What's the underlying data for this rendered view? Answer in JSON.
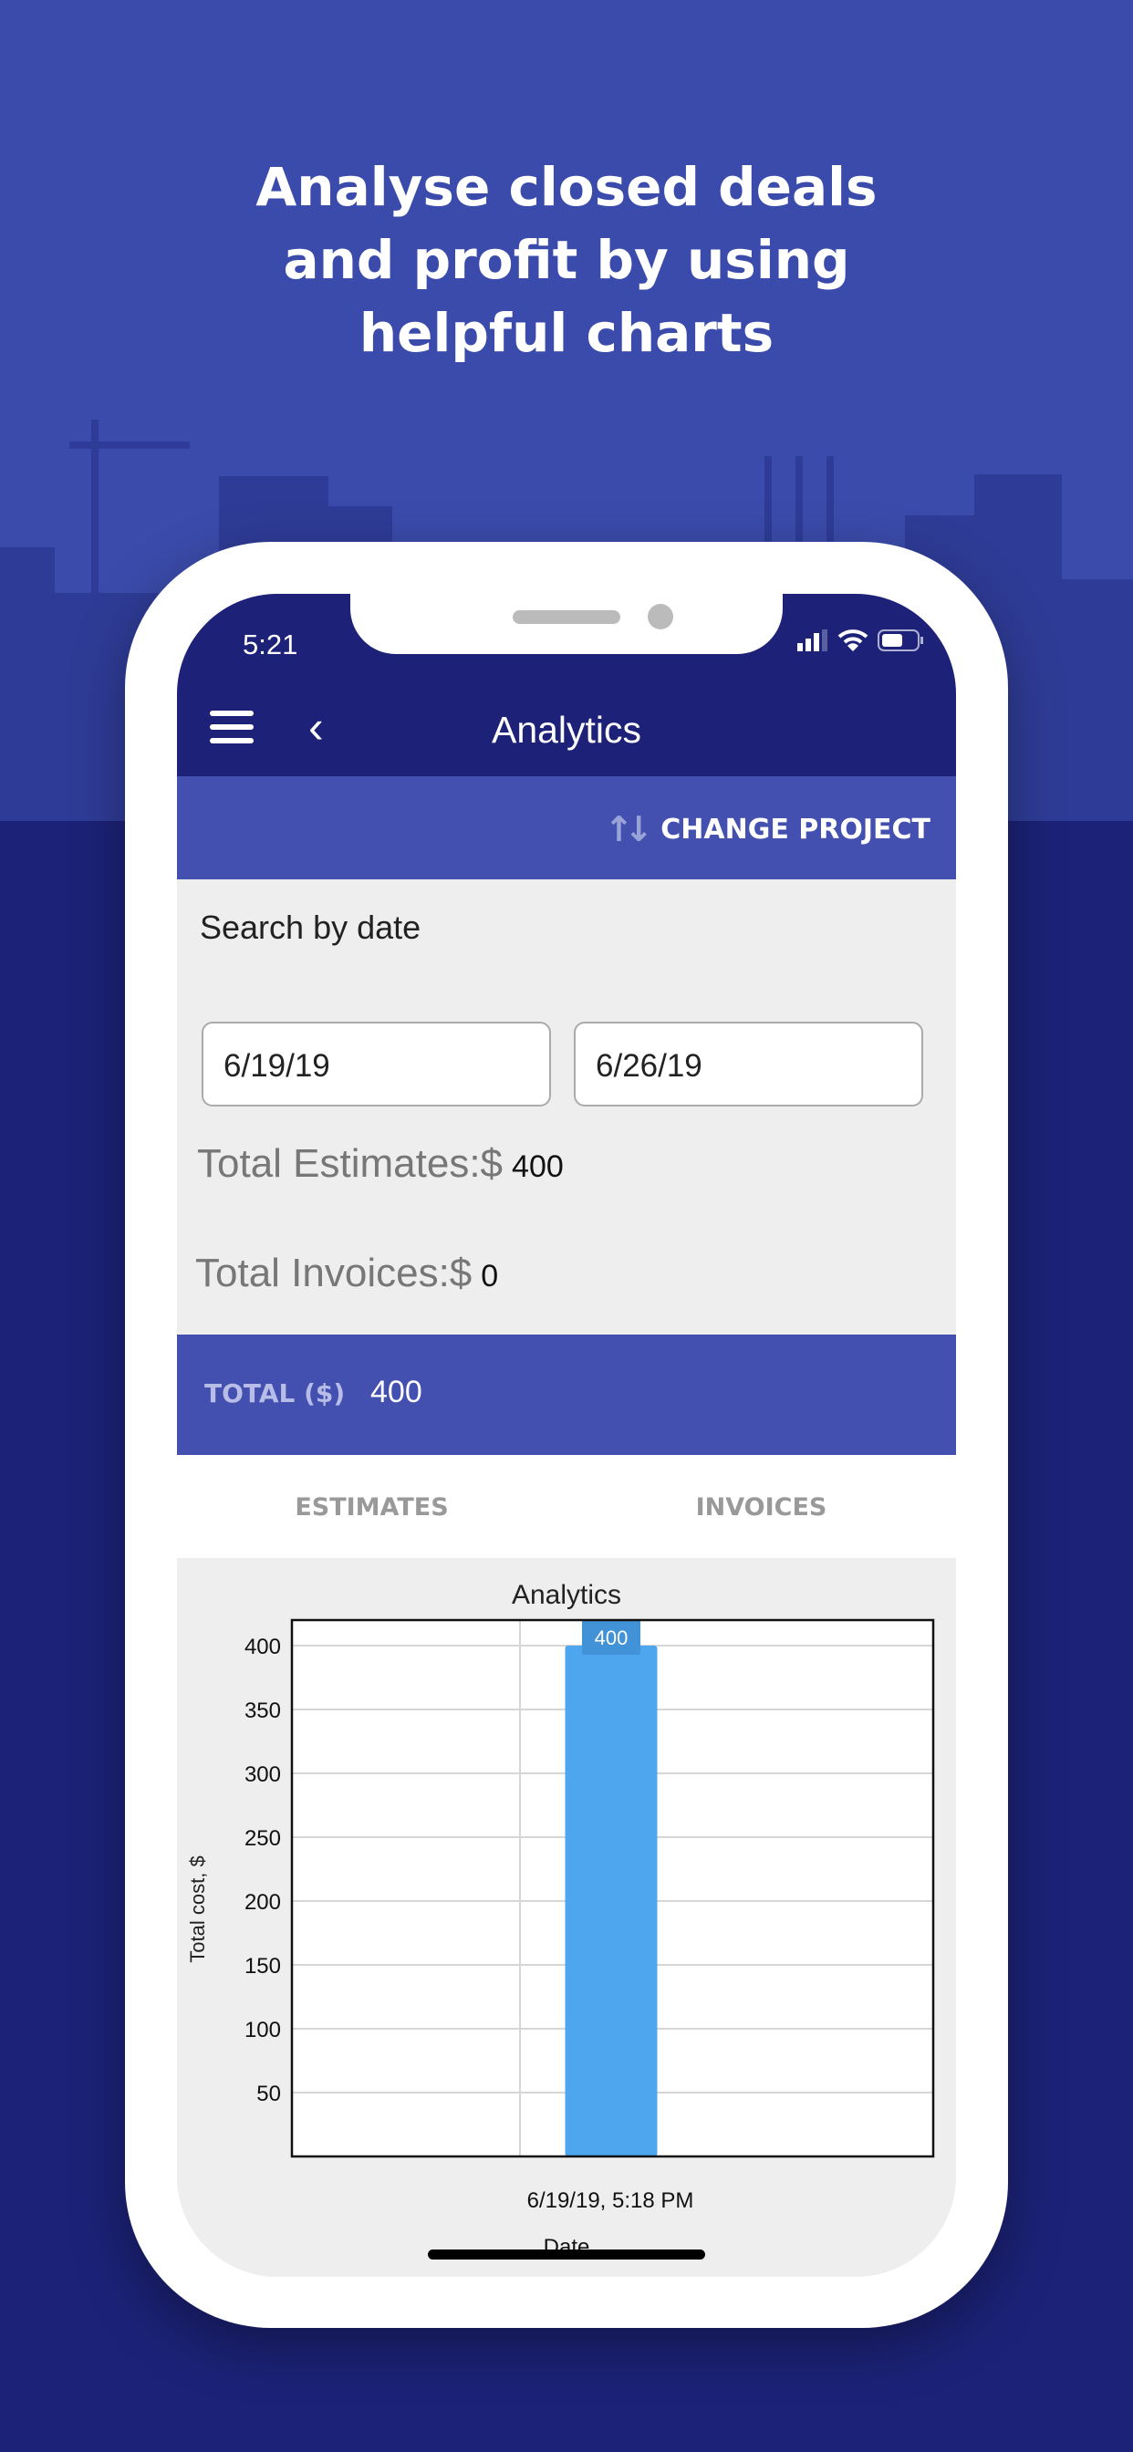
{
  "headline": [
    "Analyse closed deals",
    "and profit by using",
    "helpful charts"
  ],
  "status_bar": {
    "time": "5:21"
  },
  "nav": {
    "title": "Analytics",
    "change_project": "CHANGE PROJECT"
  },
  "search": {
    "label": "Search by date",
    "from_date": "6/19/19",
    "to_date": "6/26/19"
  },
  "totals": {
    "estimates_label": "Total Estimates:$",
    "estimates_value": "400",
    "invoices_label": "Total Invoices:$",
    "invoices_value": "0",
    "total_label": "TOTAL ($)",
    "total_value": "400"
  },
  "tabs": [
    {
      "label": "ESTIMATES"
    },
    {
      "label": "INVOICES"
    }
  ],
  "colors": {
    "nav": "#1d2178",
    "band": "#4350b0",
    "bar": "#4da6ee",
    "background": "#3b4bab"
  },
  "chart_data": {
    "type": "bar",
    "title": "Analytics",
    "xlabel": "Date",
    "ylabel": "Total cost, $",
    "categories": [
      "6/19/19, 5:18 PM"
    ],
    "values": [
      400
    ],
    "data_labels": [
      "400"
    ],
    "yticks": [
      50,
      100,
      150,
      200,
      250,
      300,
      350,
      400
    ],
    "ylim": [
      0,
      420
    ],
    "grid": true
  }
}
